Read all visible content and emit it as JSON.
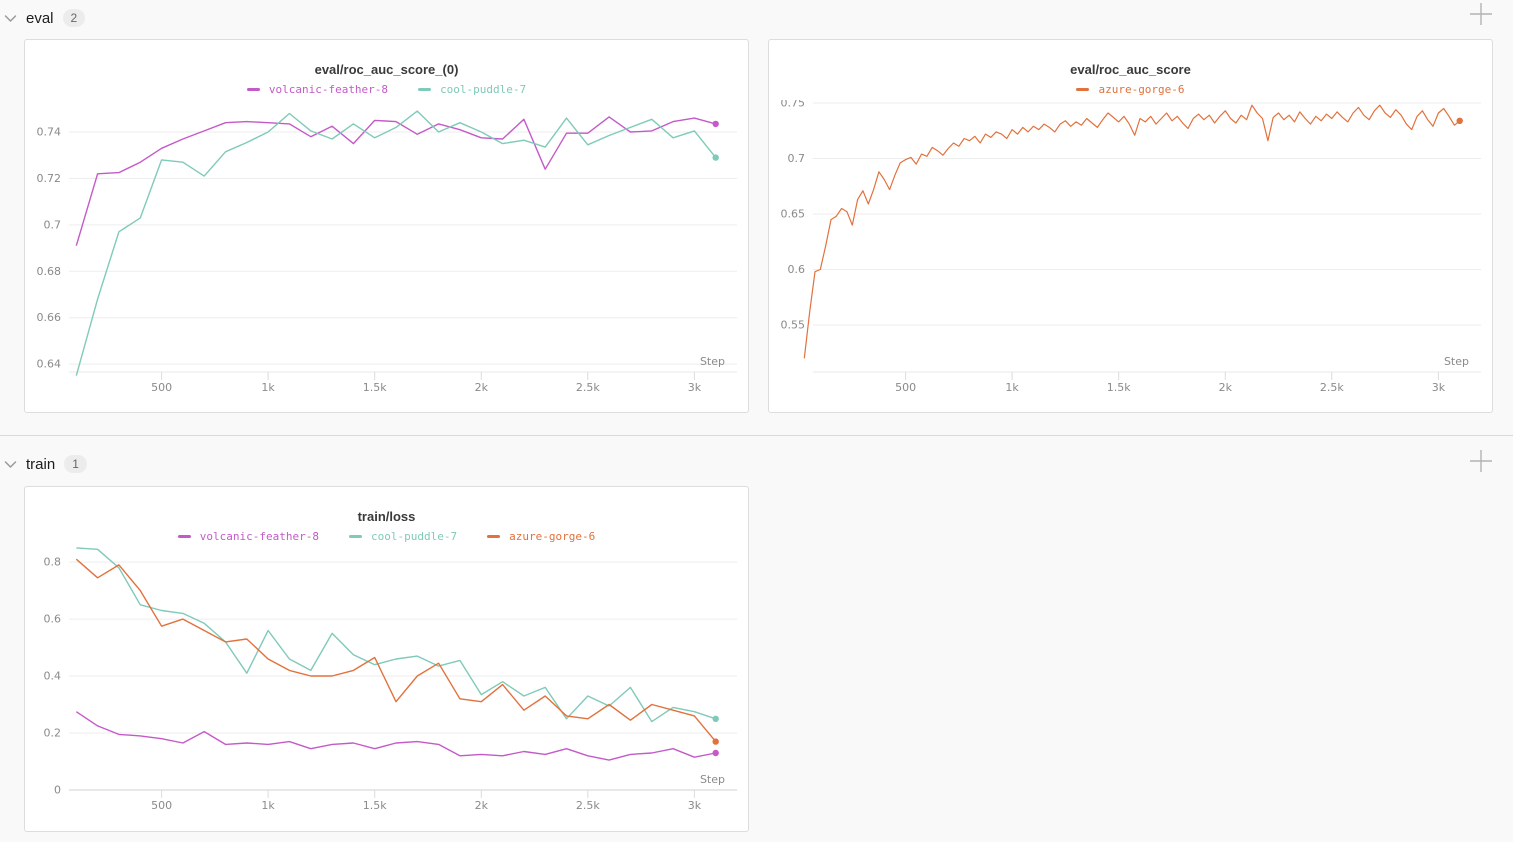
{
  "sections": [
    {
      "label": "eval",
      "count": "2"
    },
    {
      "label": "train",
      "count": "1"
    }
  ],
  "icons": {
    "chevron": "chevron-down-icon",
    "plus": "add-panel-icon"
  },
  "colors": {
    "volcanic_feather_8": "#c45ac8",
    "cool_puddle_7": "#7fcab8",
    "azure_gorge_6": "#e2713c",
    "grid": "#ededed",
    "axis_light": "#e8e8e8",
    "axis_dark": "#d2d2d2"
  },
  "chart_data": [
    {
      "type": "line",
      "title": "eval/roc_auc_score_(0)",
      "xlabel": "Step",
      "xlim": [
        0,
        3200
      ],
      "xticks": [
        [
          500,
          "500"
        ],
        [
          1000,
          "1k"
        ],
        [
          1500,
          "1.5k"
        ],
        [
          2000,
          "2k"
        ],
        [
          2500,
          "2.5k"
        ],
        [
          3000,
          "3k"
        ]
      ],
      "ylim": [
        0.6366,
        0.7538
      ],
      "ygrid": [
        0.64,
        0.66,
        0.68,
        0.7,
        0.72,
        0.74
      ],
      "ygrid_labels": [
        "0.64",
        "0.66",
        "0.68",
        "0.7",
        "0.72",
        "0.74"
      ],
      "axis_color": "#e8e8e8",
      "legend_position": "top",
      "grid": true,
      "series": [
        {
          "name": "volcanic-feather-8",
          "color": "#c45ac8",
          "x0": 100,
          "dx": 100,
          "width": 1.4,
          "end_dot": true,
          "values": [
            0.691,
            0.722,
            0.7225,
            0.727,
            0.733,
            0.737,
            0.7405,
            0.744,
            0.7445,
            0.744,
            0.7435,
            0.738,
            0.7425,
            0.735,
            0.745,
            0.7445,
            0.739,
            0.7435,
            0.741,
            0.7375,
            0.737,
            0.7455,
            0.724,
            0.7395,
            0.7395,
            0.7465,
            0.74,
            0.7405,
            0.7445,
            0.746,
            0.7435
          ]
        },
        {
          "name": "cool-puddle-7",
          "color": "#7fcab8",
          "x0": 100,
          "dx": 100,
          "width": 1.4,
          "end_dot": true,
          "values": [
            0.635,
            0.668,
            0.697,
            0.703,
            0.728,
            0.727,
            0.721,
            0.7315,
            0.7355,
            0.74,
            0.748,
            0.7405,
            0.737,
            0.7435,
            0.7375,
            0.742,
            0.749,
            0.74,
            0.744,
            0.74,
            0.735,
            0.7365,
            0.7335,
            0.746,
            0.7345,
            0.7385,
            0.742,
            0.7455,
            0.7375,
            0.7405,
            0.729
          ]
        }
      ]
    },
    {
      "type": "line",
      "title": "eval/roc_auc_score",
      "xlabel": "Step",
      "xlim": [
        0,
        3200
      ],
      "xticks": [
        [
          500,
          "500"
        ],
        [
          1000,
          "1k"
        ],
        [
          1500,
          "1.5k"
        ],
        [
          2000,
          "2k"
        ],
        [
          2500,
          "2.5k"
        ],
        [
          3000,
          "3k"
        ]
      ],
      "ylim": [
        0.5077,
        0.7527
      ],
      "ygrid": [
        0.55,
        0.6,
        0.65,
        0.7,
        0.75
      ],
      "ygrid_labels": [
        "0.55",
        "0.6",
        "0.65",
        "0.7",
        "0.75"
      ],
      "axis_color": "#e8e8e8",
      "legend_position": "top",
      "grid": true,
      "series": [
        {
          "name": "azure-gorge-6",
          "color": "#e2713c",
          "x0": 25,
          "dx": 25,
          "width": 1.2,
          "end_dot": true,
          "values": [
            0.52,
            0.562,
            0.598,
            0.6,
            0.621,
            0.645,
            0.648,
            0.655,
            0.652,
            0.64,
            0.663,
            0.671,
            0.659,
            0.672,
            0.688,
            0.681,
            0.672,
            0.685,
            0.696,
            0.699,
            0.701,
            0.695,
            0.704,
            0.702,
            0.71,
            0.707,
            0.703,
            0.709,
            0.714,
            0.711,
            0.718,
            0.716,
            0.72,
            0.714,
            0.722,
            0.719,
            0.724,
            0.722,
            0.718,
            0.726,
            0.722,
            0.728,
            0.724,
            0.729,
            0.726,
            0.731,
            0.728,
            0.724,
            0.731,
            0.734,
            0.729,
            0.733,
            0.73,
            0.736,
            0.732,
            0.728,
            0.735,
            0.741,
            0.737,
            0.733,
            0.738,
            0.731,
            0.721,
            0.736,
            0.733,
            0.738,
            0.731,
            0.736,
            0.741,
            0.734,
            0.738,
            0.732,
            0.727,
            0.736,
            0.74,
            0.735,
            0.739,
            0.732,
            0.738,
            0.743,
            0.736,
            0.732,
            0.739,
            0.735,
            0.748,
            0.741,
            0.736,
            0.716,
            0.737,
            0.741,
            0.735,
            0.739,
            0.733,
            0.742,
            0.736,
            0.731,
            0.738,
            0.734,
            0.74,
            0.736,
            0.742,
            0.737,
            0.733,
            0.741,
            0.746,
            0.739,
            0.735,
            0.743,
            0.748,
            0.741,
            0.737,
            0.744,
            0.739,
            0.731,
            0.726,
            0.738,
            0.743,
            0.735,
            0.729,
            0.741,
            0.745,
            0.738,
            0.73,
            0.734
          ]
        }
      ]
    },
    {
      "type": "line",
      "title": "train/loss",
      "xlabel": "Step",
      "xlim": [
        0,
        3200
      ],
      "xticks": [
        [
          500,
          "500"
        ],
        [
          1000,
          "1k"
        ],
        [
          1500,
          "1.5k"
        ],
        [
          2000,
          "2k"
        ],
        [
          2500,
          "2.5k"
        ],
        [
          3000,
          "3k"
        ]
      ],
      "ylim": [
        0,
        0.853
      ],
      "ygrid": [
        0,
        0.2,
        0.4,
        0.6,
        0.8
      ],
      "ygrid_labels": [
        "0",
        "0.2",
        "0.4",
        "0.6",
        "0.8"
      ],
      "axis_color": "#d2d2d2",
      "legend_position": "top",
      "grid": true,
      "series": [
        {
          "name": "volcanic-feather-8",
          "color": "#c45ac8",
          "x0": 100,
          "dx": 100,
          "width": 1.4,
          "end_dot": true,
          "values": [
            0.275,
            0.225,
            0.195,
            0.19,
            0.18,
            0.165,
            0.205,
            0.16,
            0.165,
            0.16,
            0.17,
            0.145,
            0.16,
            0.165,
            0.145,
            0.165,
            0.17,
            0.16,
            0.12,
            0.125,
            0.12,
            0.135,
            0.125,
            0.145,
            0.12,
            0.105,
            0.125,
            0.13,
            0.145,
            0.115,
            0.13
          ]
        },
        {
          "name": "cool-puddle-7",
          "color": "#7fcab8",
          "x0": 100,
          "dx": 100,
          "width": 1.4,
          "end_dot": true,
          "values": [
            0.85,
            0.845,
            0.78,
            0.65,
            0.63,
            0.62,
            0.585,
            0.52,
            0.41,
            0.56,
            0.46,
            0.42,
            0.55,
            0.475,
            0.44,
            0.46,
            0.47,
            0.435,
            0.455,
            0.335,
            0.38,
            0.33,
            0.36,
            0.25,
            0.33,
            0.295,
            0.36,
            0.24,
            0.29,
            0.275,
            0.25
          ]
        },
        {
          "name": "azure-gorge-6",
          "color": "#e2713c",
          "x0": 100,
          "dx": 100,
          "width": 1.4,
          "end_dot": true,
          "values": [
            0.81,
            0.745,
            0.79,
            0.7,
            0.575,
            0.6,
            0.56,
            0.52,
            0.53,
            0.46,
            0.42,
            0.4,
            0.4,
            0.42,
            0.465,
            0.31,
            0.4,
            0.445,
            0.32,
            0.31,
            0.37,
            0.28,
            0.33,
            0.26,
            0.25,
            0.3,
            0.245,
            0.3,
            0.28,
            0.26,
            0.17
          ]
        }
      ]
    }
  ]
}
